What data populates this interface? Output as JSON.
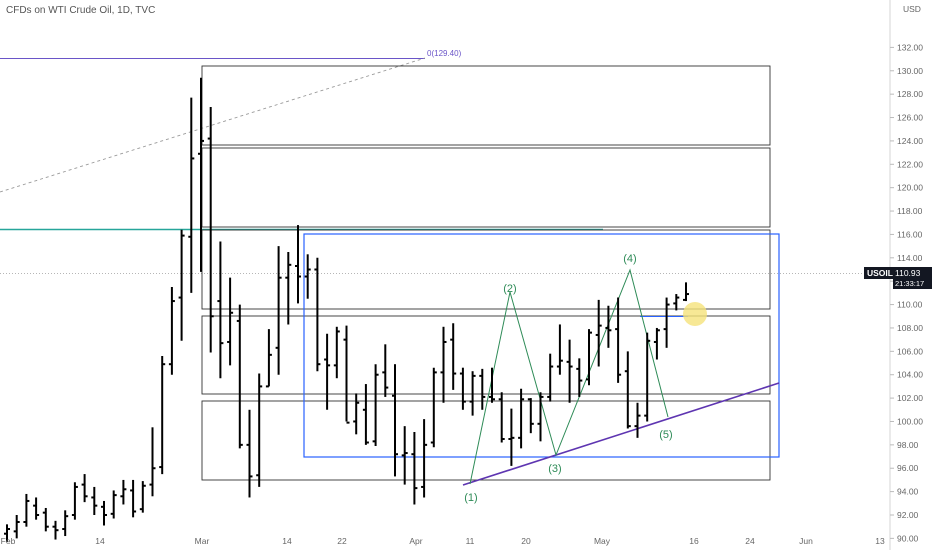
{
  "header": {
    "title": "CFDs on WTI Crude Oil, 1D, TVC"
  },
  "price_axis": {
    "currency": "USD",
    "ticks": [
      "90.00",
      "92.00",
      "94.00",
      "96.00",
      "98.00",
      "100.00",
      "102.00",
      "104.00",
      "106.00",
      "108.00",
      "110.00",
      "112.00",
      "114.00",
      "116.00",
      "118.00",
      "120.00",
      "122.00",
      "124.00",
      "126.00",
      "128.00",
      "130.00",
      "132.00"
    ]
  },
  "time_axis": {
    "ticks": [
      "Feb",
      "14",
      "Mar",
      "14",
      "22",
      "Apr",
      "11",
      "20",
      "May",
      "16",
      "24",
      "Jun",
      "13"
    ]
  },
  "symbol_tag": {
    "symbol": "USOIL",
    "price": "110.93",
    "countdown": "21:33:17"
  },
  "fib_label": "0(129.40)",
  "wave_labels": [
    "(1)",
    "(2)",
    "(3)",
    "(4)",
    "(5)"
  ],
  "colors": {
    "bar": "#000000",
    "box_blue": "#2962ff",
    "teal_line": "#26a69a",
    "purple_line": "#5e35b1",
    "wave_green": "#2e8b57",
    "highlight": "#f5e27a"
  },
  "chart_data": {
    "type": "ohlc",
    "title": "CFDs on WTI Crude Oil, 1D, TVC",
    "ylabel": "USD",
    "ylim": [
      89,
      133
    ],
    "series": [
      {
        "values": [
          [
            90.4,
            91.2,
            89.7,
            90.8
          ],
          [
            90.6,
            92.0,
            90.0,
            91.4
          ],
          [
            91.4,
            93.8,
            91.0,
            93.2
          ],
          [
            92.8,
            93.5,
            91.6,
            92.0
          ],
          [
            92.2,
            92.6,
            90.6,
            91.0
          ],
          [
            91.0,
            91.5,
            89.9,
            90.7
          ],
          [
            90.8,
            92.4,
            90.2,
            91.9
          ],
          [
            92.0,
            94.8,
            91.6,
            94.4
          ],
          [
            94.6,
            95.5,
            93.1,
            93.6
          ],
          [
            93.5,
            94.4,
            92.0,
            92.8
          ],
          [
            92.7,
            93.2,
            91.1,
            92.0
          ],
          [
            92.1,
            94.1,
            91.7,
            93.7
          ],
          [
            93.6,
            95.0,
            92.9,
            94.2
          ],
          [
            94.1,
            95.0,
            91.8,
            92.3
          ],
          [
            92.5,
            94.9,
            92.2,
            94.5
          ],
          [
            94.6,
            99.5,
            93.6,
            96.0
          ],
          [
            96.1,
            105.6,
            95.5,
            104.9
          ],
          [
            104.9,
            111.5,
            104.0,
            110.3
          ],
          [
            110.6,
            116.4,
            106.9,
            115.9
          ],
          [
            115.8,
            127.7,
            111.0,
            122.5
          ],
          [
            122.9,
            129.4,
            112.8,
            124.0
          ],
          [
            124.2,
            126.9,
            105.9,
            109.0
          ],
          [
            110.3,
            115.4,
            103.7,
            106.7
          ],
          [
            106.8,
            112.3,
            104.8,
            109.3
          ],
          [
            108.6,
            110.0,
            97.7,
            98.0
          ],
          [
            98.0,
            101.0,
            93.5,
            95.3
          ],
          [
            95.4,
            104.1,
            94.4,
            103.0
          ],
          [
            103.0,
            107.9,
            103.0,
            105.7
          ],
          [
            106.3,
            115.0,
            104.0,
            112.3
          ],
          [
            112.3,
            114.5,
            108.3,
            113.4
          ],
          [
            113.3,
            116.8,
            110.1,
            112.4
          ],
          [
            112.4,
            114.3,
            110.5,
            113.0
          ],
          [
            113.0,
            114.0,
            104.3,
            104.9
          ],
          [
            105.3,
            107.5,
            101.0,
            104.8
          ],
          [
            104.8,
            108.1,
            103.7,
            107.7
          ],
          [
            107.0,
            108.2,
            100.0,
            99.9
          ],
          [
            100.0,
            102.4,
            98.9,
            101.6
          ],
          [
            101.0,
            103.2,
            98.0,
            98.2
          ],
          [
            98.3,
            104.9,
            97.9,
            104.0
          ],
          [
            104.2,
            106.6,
            102.1,
            102.9
          ],
          [
            102.2,
            104.9,
            95.3,
            97.2
          ],
          [
            97.1,
            99.6,
            94.6,
            97.3
          ],
          [
            97.2,
            99.1,
            92.9,
            94.3
          ],
          [
            94.4,
            100.2,
            93.5,
            98.0
          ],
          [
            98.2,
            104.6,
            97.8,
            104.2
          ],
          [
            104.2,
            108.1,
            101.6,
            106.8
          ],
          [
            107.0,
            108.4,
            102.7,
            104.1
          ],
          [
            104.1,
            104.6,
            101.0,
            101.7
          ],
          [
            101.7,
            104.3,
            100.5,
            103.9
          ],
          [
            103.9,
            104.5,
            101.0,
            102.1
          ],
          [
            102.1,
            104.6,
            101.6,
            101.9
          ],
          [
            101.9,
            102.5,
            98.2,
            98.5
          ],
          [
            98.5,
            101.1,
            96.2,
            98.6
          ],
          [
            98.6,
            102.8,
            97.7,
            101.9
          ],
          [
            101.9,
            102.0,
            99.0,
            99.8
          ],
          [
            99.8,
            102.5,
            98.3,
            102.1
          ],
          [
            102.1,
            105.8,
            101.7,
            104.7
          ],
          [
            104.7,
            108.3,
            104.0,
            105.2
          ],
          [
            105.1,
            107.0,
            101.6,
            104.7
          ],
          [
            104.5,
            105.4,
            102.1,
            103.5
          ],
          [
            103.6,
            107.9,
            103.1,
            107.6
          ],
          [
            107.4,
            110.4,
            104.7,
            108.2
          ],
          [
            108.0,
            109.9,
            106.3,
            107.8
          ],
          [
            107.9,
            110.6,
            103.3,
            104.0
          ],
          [
            104.3,
            106.0,
            99.4,
            99.6
          ],
          [
            99.6,
            101.6,
            98.6,
            100.5
          ],
          [
            100.5,
            107.6,
            100.0,
            106.9
          ],
          [
            106.8,
            108.0,
            105.3,
            107.8
          ],
          [
            107.9,
            110.6,
            106.3,
            110.0
          ],
          [
            110.1,
            110.9,
            109.5,
            110.6
          ],
          [
            110.4,
            111.9,
            110.3,
            110.9
          ]
        ]
      }
    ]
  }
}
